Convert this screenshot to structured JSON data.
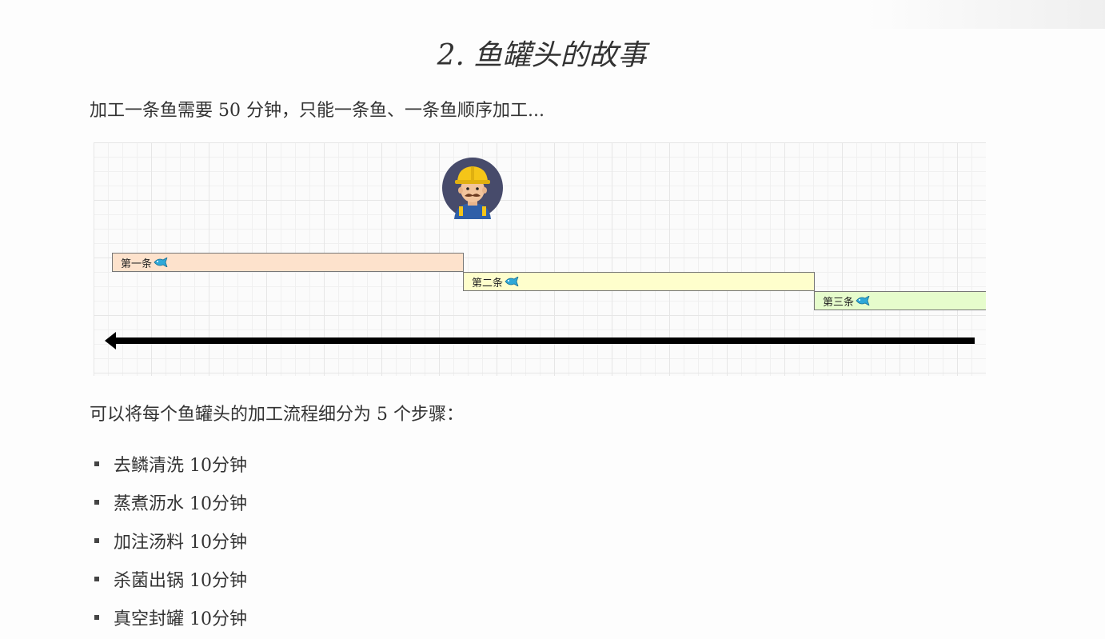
{
  "title": "2. 鱼罐头的故事",
  "intro": "加工一条鱼需要 50 分钟，只能一条鱼、一条鱼顺序加工...",
  "diagram": {
    "bars": [
      {
        "label": "第一条",
        "color": "#fde2cc"
      },
      {
        "label": "第二条",
        "color": "#fefecc"
      },
      {
        "label": "第三条",
        "color": "#e6fccc"
      }
    ]
  },
  "steps_intro": "可以将每个鱼罐头的加工流程细分为 5 个步骤：",
  "steps": [
    "去鳞清洗 10分钟",
    "蒸煮沥水 10分钟",
    "加注汤料 10分钟",
    "杀菌出锅 10分钟",
    "真空封罐 10分钟"
  ]
}
